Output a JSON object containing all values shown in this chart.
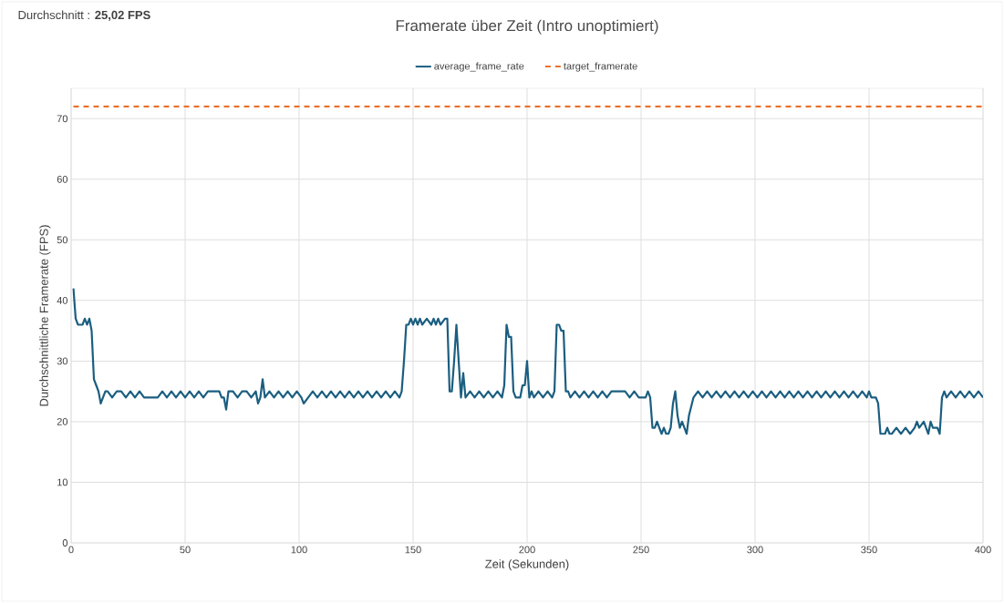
{
  "chart_data": {
    "type": "line",
    "title": "Framerate über Zeit (Intro unoptimiert)",
    "xlabel": "Zeit (Sekunden)",
    "ylabel": "Durchschnittliche Framerate (FPS)",
    "annotations": [
      "Durchschnitt : **25,02 FPS**"
    ],
    "xlim": [
      0,
      400
    ],
    "ylim": [
      0,
      75
    ],
    "xticks": [
      0,
      50,
      100,
      150,
      200,
      250,
      300,
      350,
      400
    ],
    "yticks": [
      0,
      10,
      20,
      30,
      40,
      50,
      60,
      70
    ],
    "grid": true,
    "legend": "top",
    "series": [
      {
        "name": "average_frame_rate",
        "color": "#1b5e80",
        "line_style": "solid",
        "x": [
          1,
          2,
          3,
          4,
          5,
          6,
          7,
          8,
          9,
          10,
          11,
          12,
          13,
          14,
          15,
          16,
          18,
          20,
          22,
          24,
          26,
          28,
          30,
          32,
          35,
          38,
          40,
          42,
          44,
          46,
          48,
          50,
          52,
          54,
          56,
          58,
          60,
          63,
          65,
          66,
          67,
          68,
          69,
          71,
          73,
          75,
          77,
          79,
          81,
          82,
          83,
          84,
          85,
          87,
          89,
          91,
          93,
          95,
          97,
          99,
          101,
          102,
          104,
          106,
          108,
          110,
          112,
          114,
          116,
          118,
          120,
          122,
          124,
          126,
          128,
          130,
          132,
          134,
          136,
          138,
          140,
          142,
          144,
          145,
          146,
          147,
          148,
          149,
          150,
          151,
          152,
          153,
          154,
          156,
          158,
          159,
          160,
          161,
          162,
          164,
          165,
          166,
          167,
          168,
          169,
          170,
          171,
          172,
          173,
          175,
          177,
          179,
          181,
          183,
          185,
          187,
          189,
          190,
          191,
          192,
          193,
          194,
          195,
          196,
          197,
          198,
          199,
          200,
          201,
          202,
          203,
          205,
          207,
          209,
          211,
          212,
          213,
          214,
          215,
          216,
          217,
          218,
          219,
          221,
          223,
          225,
          227,
          229,
          231,
          233,
          235,
          237,
          239,
          241,
          243,
          245,
          247,
          249,
          251,
          252,
          253,
          254,
          255,
          256,
          257,
          258,
          259,
          260,
          261,
          262,
          263,
          264,
          265,
          266,
          267,
          268,
          269,
          270,
          271,
          273,
          275,
          277,
          279,
          281,
          283,
          285,
          287,
          289,
          291,
          293,
          295,
          297,
          299,
          301,
          303,
          305,
          307,
          309,
          311,
          313,
          315,
          317,
          319,
          321,
          323,
          325,
          327,
          329,
          331,
          333,
          335,
          337,
          339,
          341,
          343,
          345,
          347,
          349,
          350,
          351,
          352,
          353,
          354,
          355,
          356,
          357,
          358,
          359,
          360,
          362,
          364,
          366,
          368,
          370,
          371,
          372,
          374,
          375,
          376,
          377,
          378,
          379,
          380,
          381,
          382,
          383,
          384,
          386,
          388,
          390,
          392,
          394,
          396,
          398,
          400
        ],
        "values": [
          42,
          37,
          36,
          36,
          36,
          37,
          36,
          37,
          35,
          27,
          26,
          25,
          23,
          24,
          25,
          25,
          24,
          25,
          25,
          24,
          25,
          24,
          25,
          24,
          24,
          24,
          25,
          24,
          25,
          24,
          25,
          24,
          25,
          24,
          25,
          24,
          25,
          25,
          25,
          24,
          24,
          22,
          25,
          25,
          24,
          25,
          25,
          24,
          25,
          23,
          24,
          27,
          24,
          25,
          24,
          25,
          24,
          25,
          24,
          25,
          24,
          23,
          24,
          25,
          24,
          25,
          24,
          25,
          24,
          25,
          24,
          25,
          24,
          25,
          24,
          25,
          24,
          25,
          24,
          25,
          24,
          25,
          24,
          25,
          30,
          36,
          36,
          37,
          36,
          37,
          36,
          37,
          36,
          37,
          36,
          37,
          36,
          37,
          36,
          37,
          37,
          25,
          25,
          30,
          36,
          30,
          24,
          28,
          24,
          25,
          24,
          25,
          24,
          25,
          24,
          25,
          24,
          26,
          36,
          34,
          34,
          25,
          24,
          24,
          24,
          26,
          26,
          30,
          24,
          25,
          24,
          25,
          24,
          25,
          24,
          25,
          36,
          36,
          35,
          35,
          25,
          25,
          24,
          25,
          24,
          25,
          24,
          25,
          24,
          25,
          24,
          25,
          25,
          25,
          25,
          24,
          25,
          24,
          24,
          24,
          25,
          24,
          19,
          19,
          20,
          19,
          18,
          19,
          18,
          18,
          19,
          23,
          25,
          21,
          19,
          20,
          19,
          18,
          21,
          24,
          25,
          24,
          25,
          24,
          25,
          24,
          25,
          24,
          25,
          24,
          25,
          24,
          25,
          24,
          25,
          24,
          25,
          24,
          25,
          24,
          25,
          24,
          25,
          24,
          25,
          24,
          25,
          24,
          25,
          24,
          25,
          24,
          25,
          24,
          25,
          24,
          25,
          24,
          25,
          24,
          24,
          24,
          23,
          18,
          18,
          18,
          19,
          18,
          18,
          19,
          18,
          19,
          18,
          19,
          20,
          19,
          20,
          19,
          18,
          20,
          19,
          19,
          19,
          18,
          24,
          25,
          24,
          25,
          24,
          25,
          24,
          25,
          24,
          25,
          24
        ]
      },
      {
        "name": "target_framerate",
        "color": "#e8702a",
        "line_style": "dashed",
        "x": [
          1,
          400
        ],
        "values": [
          72,
          72
        ]
      }
    ]
  }
}
